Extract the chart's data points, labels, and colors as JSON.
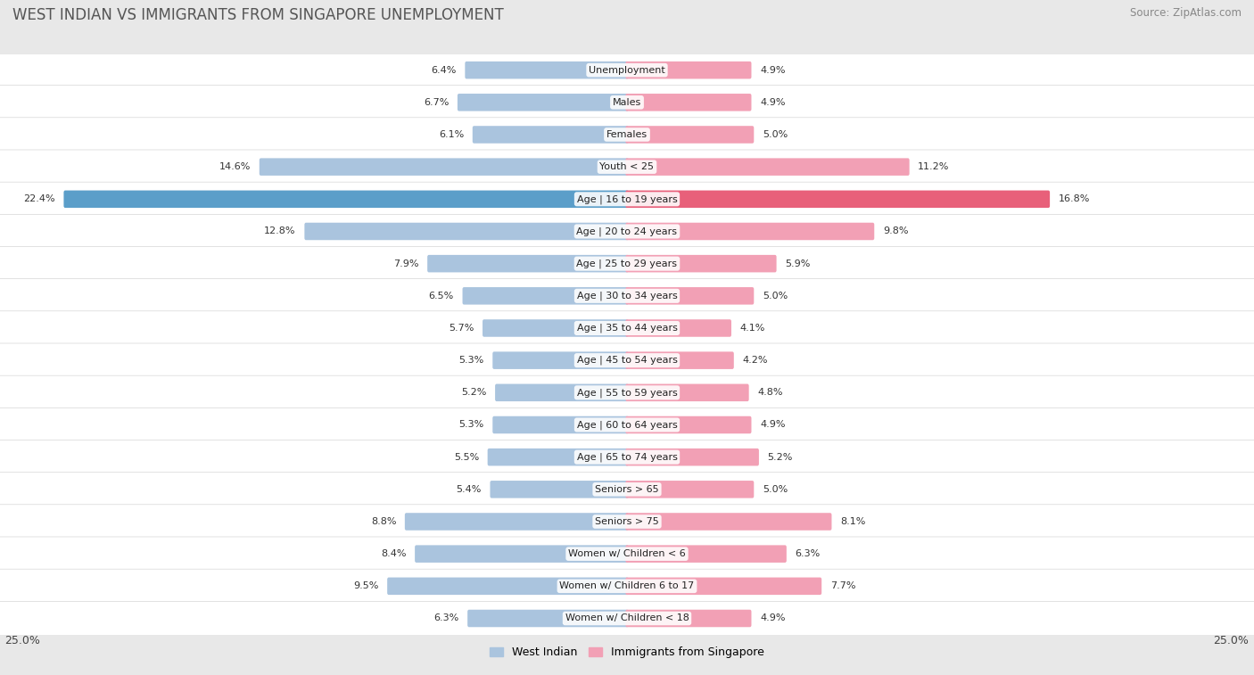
{
  "title": "WEST INDIAN VS IMMIGRANTS FROM SINGAPORE UNEMPLOYMENT",
  "source": "Source: ZipAtlas.com",
  "categories": [
    "Unemployment",
    "Males",
    "Females",
    "Youth < 25",
    "Age | 16 to 19 years",
    "Age | 20 to 24 years",
    "Age | 25 to 29 years",
    "Age | 30 to 34 years",
    "Age | 35 to 44 years",
    "Age | 45 to 54 years",
    "Age | 55 to 59 years",
    "Age | 60 to 64 years",
    "Age | 65 to 74 years",
    "Seniors > 65",
    "Seniors > 75",
    "Women w/ Children < 6",
    "Women w/ Children 6 to 17",
    "Women w/ Children < 18"
  ],
  "left_values": [
    6.4,
    6.7,
    6.1,
    14.6,
    22.4,
    12.8,
    7.9,
    6.5,
    5.7,
    5.3,
    5.2,
    5.3,
    5.5,
    5.4,
    8.8,
    8.4,
    9.5,
    6.3
  ],
  "right_values": [
    4.9,
    4.9,
    5.0,
    11.2,
    16.8,
    9.8,
    5.9,
    5.0,
    4.1,
    4.2,
    4.8,
    4.9,
    5.2,
    5.0,
    8.1,
    6.3,
    7.7,
    4.9
  ],
  "left_color": "#aac4de",
  "right_color": "#f2a0b5",
  "highlight_left_color": "#5b9ec9",
  "highlight_right_color": "#e8607a",
  "max_val": 25.0,
  "legend_left": "West Indian",
  "legend_right": "Immigrants from Singapore",
  "bg_color": "#e8e8e8",
  "row_bg_light": "#f5f5f5",
  "row_bg_dark": "#ececec",
  "title_fontsize": 12,
  "source_fontsize": 8.5,
  "label_fontsize": 8.0,
  "value_fontsize": 8.0,
  "highlight_idx": 4
}
